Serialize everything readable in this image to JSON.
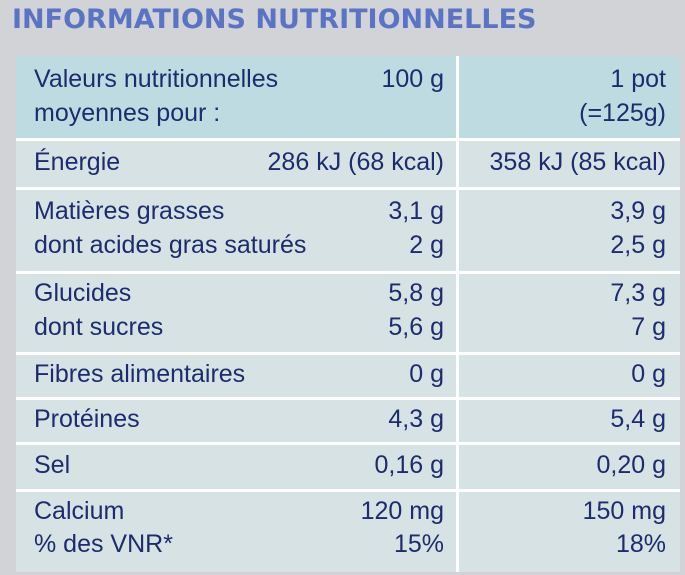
{
  "title": "INFORMATIONS NUTRITIONNELLES",
  "header": {
    "label_line1": "Valeurs nutritionnelles",
    "label_line2": "moyennes pour :",
    "col1": "100 g",
    "col2_line1": "1 pot",
    "col2_line2": "(=125g)"
  },
  "rows": {
    "energie": {
      "label": "Énergie",
      "v100": "286 kJ (68 kcal)",
      "vpot": "358 kJ (85 kcal)"
    },
    "matieres_grasses": {
      "label": "Matières grasses",
      "v100": "3,1 g",
      "vpot": "3,9 g"
    },
    "acides_gras": {
      "label": "dont acides gras saturés",
      "v100": "2 g",
      "vpot": "2,5 g"
    },
    "glucides": {
      "label": "Glucides",
      "v100": "5,8 g",
      "vpot": "7,3 g"
    },
    "sucres": {
      "label": "dont sucres",
      "v100": "5,6 g",
      "vpot": "7 g"
    },
    "fibres": {
      "label": "Fibres alimentaires",
      "v100": "0 g",
      "vpot": "0 g"
    },
    "proteines": {
      "label": "Protéines",
      "v100": "4,3 g",
      "vpot": "5,4 g"
    },
    "sel": {
      "label": "Sel",
      "v100": "0,16 g",
      "vpot": "0,20 g"
    },
    "calcium": {
      "label": "Calcium",
      "v100": "120 mg",
      "vpot": "150 mg"
    },
    "vnr": {
      "label": "% des VNR*",
      "v100": "15%",
      "vpot": "18%"
    }
  }
}
